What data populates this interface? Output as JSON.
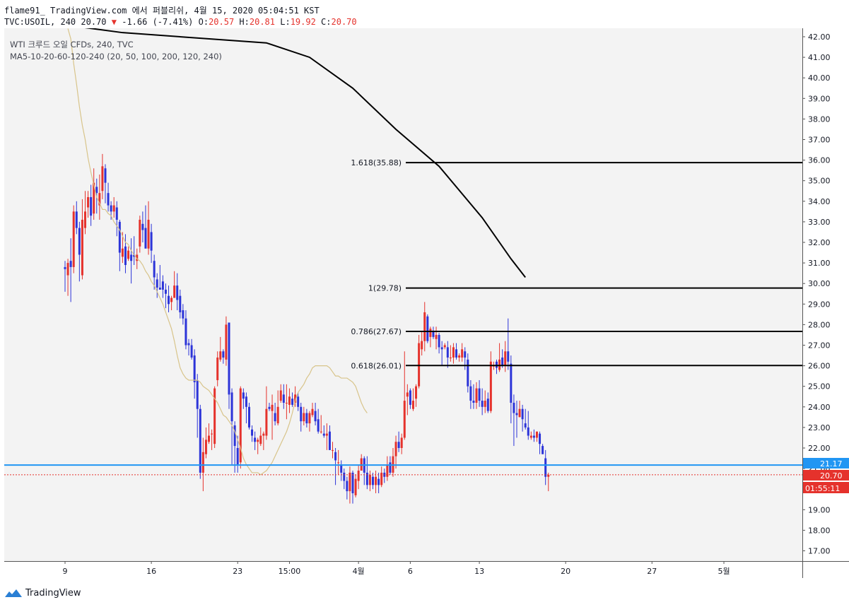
{
  "header": {
    "line1": "flame91_ TradingView.com 에서 퍼블리쉬, 4월 15, 2020 05:04:51 KST",
    "symbol": "TVC:USOIL, 240",
    "last": "20.70",
    "arrow": "▼",
    "change": "-1.66 (-7.41%)",
    "o_label": "O:",
    "o": "20.57",
    "h_label": "H:",
    "h": "20.81",
    "l_label": "L:",
    "l": "19.92",
    "c_label": "C:",
    "c": "20.70"
  },
  "legend": {
    "title": "WTI 크루드 오일 CFDs, 240, TVC",
    "ma": "MA5-10-20-60-120-240 (20, 50, 100, 200, 120, 240)"
  },
  "badges": {
    "level": "21.17",
    "price": "20.70",
    "timer": "01:55:11"
  },
  "footer": {
    "brand": "TradingView"
  },
  "colors": {
    "up": "#e5322c",
    "down": "#2c34d8",
    "ma_tan": "#d8c48a",
    "ma_blue": "#2f3ae0",
    "ma_red": "#e8322a",
    "trend": "#000000",
    "hline": "#2196f3",
    "bg": "#f3f3f3"
  },
  "chart_data": {
    "type": "candlestick",
    "title": "WTI 크루드 오일 CFDs, 240, TVC",
    "symbol": "TVC:USOIL",
    "ylim": [
      16.3,
      42.3
    ],
    "y_ticks": [
      "42.00",
      "41.00",
      "40.00",
      "39.00",
      "38.00",
      "37.00",
      "36.00",
      "35.00",
      "34.00",
      "33.00",
      "32.00",
      "31.00",
      "30.00",
      "29.00",
      "28.00",
      "27.00",
      "26.00",
      "25.00",
      "24.00",
      "23.00",
      "22.00",
      "21.00",
      "20.00",
      "19.00",
      "18.00",
      "17.00"
    ],
    "x_ticks": [
      {
        "label": "9",
        "bar": 0
      },
      {
        "label": "16",
        "bar": 30
      },
      {
        "label": "23",
        "bar": 60
      },
      {
        "label": "15:00",
        "bar": 78
      },
      {
        "label": "4월",
        "bar": 102
      },
      {
        "label": "6",
        "bar": 120
      },
      {
        "label": "13",
        "bar": 144
      },
      {
        "label": "20",
        "bar": 174
      },
      {
        "label": "27",
        "bar": 204
      },
      {
        "label": "5월",
        "bar": 229
      }
    ],
    "fib_levels": [
      {
        "label": "1.618(35.88)",
        "value": 35.88
      },
      {
        "label": "1(29.78)",
        "value": 29.78
      },
      {
        "label": "0.786(27.67)",
        "value": 27.67
      },
      {
        "label": "0.618(26.01)",
        "value": 26.01
      }
    ],
    "horizontal_line": 21.17,
    "last_price": 20.7,
    "trendline": [
      [
        -1,
        42.6
      ],
      [
        4,
        42.5
      ],
      [
        20,
        42.2
      ],
      [
        70,
        41.7
      ],
      [
        85,
        41.0
      ],
      [
        100,
        39.5
      ],
      [
        115,
        37.5
      ],
      [
        130,
        35.7
      ],
      [
        145,
        33.2
      ],
      [
        155,
        31.2
      ],
      [
        160,
        30.3
      ]
    ],
    "candles": [
      [
        30.8,
        30.7,
        31.1,
        29.6
      ],
      [
        30.4,
        31.0,
        31.2,
        29.4
      ],
      [
        31.1,
        30.8,
        32.2,
        29.1
      ],
      [
        30.8,
        33.5,
        33.8,
        30.5
      ],
      [
        33.5,
        32.7,
        34.0,
        32.4
      ],
      [
        32.7,
        31.4,
        33.0,
        30.1
      ],
      [
        30.4,
        33.1,
        34.1,
        30.2
      ],
      [
        32.7,
        33.5,
        34.5,
        32.4
      ],
      [
        33.7,
        34.2,
        34.5,
        33.2
      ],
      [
        34.2,
        33.3,
        34.8,
        32.8
      ],
      [
        33.4,
        34.9,
        35.6,
        33.1
      ],
      [
        34.7,
        34.4,
        35.1,
        33.4
      ],
      [
        33.8,
        34.4,
        35.3,
        33.1
      ],
      [
        34.5,
        35.7,
        36.3,
        34.1
      ],
      [
        35.6,
        34.9,
        35.8,
        33.9
      ],
      [
        34.4,
        33.8,
        34.9,
        33.5
      ],
      [
        33.8,
        33.5,
        34.0,
        33.1
      ],
      [
        33.5,
        33.8,
        34.2,
        33.2
      ],
      [
        33.7,
        33.1,
        34.0,
        32.3
      ],
      [
        33.0,
        31.5,
        33.1,
        30.6
      ],
      [
        31.3,
        31.7,
        32.5,
        31.0
      ],
      [
        31.8,
        30.9,
        32.4,
        30.5
      ],
      [
        31.2,
        31.6,
        31.8,
        31.1
      ],
      [
        31.4,
        31.1,
        32.2,
        30.0
      ],
      [
        31.4,
        31.3,
        32.3,
        30.9
      ],
      [
        31.1,
        31.4,
        31.7,
        30.7
      ],
      [
        31.8,
        33.1,
        33.3,
        31.5
      ],
      [
        32.9,
        32.6,
        33.5,
        32.0
      ],
      [
        32.7,
        31.7,
        33.8,
        31.7
      ],
      [
        31.7,
        33.1,
        34.0,
        31.4
      ],
      [
        32.5,
        31.6,
        32.9,
        31.0
      ],
      [
        31.1,
        30.3,
        31.4,
        29.7
      ],
      [
        30.2,
        29.8,
        30.5,
        29.3
      ],
      [
        29.8,
        29.7,
        30.9,
        29.7
      ],
      [
        30.1,
        29.7,
        30.4,
        29.3
      ],
      [
        29.7,
        29.5,
        30.0,
        28.8
      ],
      [
        29.4,
        29.0,
        29.9,
        28.6
      ],
      [
        29.1,
        29.3,
        29.4,
        28.7
      ],
      [
        29.3,
        29.9,
        30.6,
        29.3
      ],
      [
        29.9,
        29.2,
        30.5,
        28.7
      ],
      [
        29.4,
        28.6,
        29.7,
        28.3
      ],
      [
        28.7,
        28.3,
        29.0,
        28.0
      ],
      [
        28.3,
        27.0,
        28.7,
        26.8
      ],
      [
        27.1,
        27.0,
        27.3,
        26.5
      ],
      [
        27.0,
        26.4,
        27.3,
        26.3
      ],
      [
        26.5,
        25.2,
        26.8,
        24.4
      ],
      [
        25.3,
        23.9,
        25.6,
        22.5
      ],
      [
        23.9,
        20.8,
        24.1,
        20.5
      ],
      [
        20.8,
        21.8,
        22.5,
        19.9
      ],
      [
        21.7,
        22.4,
        23.0,
        21.5
      ],
      [
        22.3,
        22.6,
        23.2,
        22.2
      ],
      [
        22.7,
        22.7,
        22.9,
        21.9
      ],
      [
        22.2,
        24.9,
        25.0,
        22.0
      ],
      [
        25.3,
        26.4,
        26.7,
        25.0
      ],
      [
        26.3,
        26.7,
        27.4,
        26.2
      ],
      [
        26.7,
        26.4,
        26.8,
        26.1
      ],
      [
        26.3,
        28.0,
        28.4,
        26.0
      ],
      [
        28.1,
        24.6,
        28.1,
        23.9
      ],
      [
        24.7,
        23.3,
        24.9,
        21.2
      ],
      [
        23.1,
        22.1,
        23.3,
        20.8
      ],
      [
        22.0,
        21.2,
        22.6,
        20.8
      ],
      [
        21.3,
        24.9,
        25.0,
        21.0
      ],
      [
        24.7,
        24.4,
        24.9,
        23.9
      ],
      [
        24.5,
        24.0,
        24.7,
        23.2
      ],
      [
        24.0,
        23.0,
        24.2,
        22.9
      ],
      [
        22.9,
        22.6,
        23.1,
        22.3
      ],
      [
        22.5,
        22.3,
        22.8,
        21.9
      ],
      [
        22.3,
        22.4,
        22.5,
        21.7
      ],
      [
        22.2,
        22.6,
        23.0,
        22.1
      ],
      [
        22.6,
        22.7,
        22.8,
        21.9
      ],
      [
        22.6,
        23.9,
        25.0,
        22.4
      ],
      [
        24.0,
        23.9,
        24.2,
        23.8
      ],
      [
        23.8,
        24.1,
        24.6,
        22.4
      ],
      [
        23.7,
        23.3,
        24.2,
        23.1
      ],
      [
        23.2,
        24.0,
        24.8,
        23.1
      ],
      [
        24.3,
        24.8,
        25.1,
        24.2
      ],
      [
        24.6,
        24.2,
        25.1,
        23.9
      ],
      [
        24.2,
        24.2,
        25.1,
        23.4
      ],
      [
        24.1,
        24.5,
        24.9,
        23.7
      ],
      [
        24.4,
        24.1,
        24.7,
        24.0
      ],
      [
        24.2,
        24.6,
        25.0,
        24.0
      ],
      [
        24.5,
        24.0,
        24.7,
        23.8
      ],
      [
        24.0,
        23.3,
        24.2,
        22.8
      ],
      [
        23.3,
        23.7,
        24.0,
        23.1
      ],
      [
        23.7,
        23.2,
        23.9,
        23.0
      ],
      [
        23.2,
        23.7,
        23.8,
        22.8
      ],
      [
        23.6,
        23.9,
        24.2,
        23.5
      ],
      [
        23.8,
        23.3,
        24.2,
        23.1
      ],
      [
        23.4,
        22.8,
        23.9,
        22.7
      ],
      [
        22.8,
        22.8,
        23.6,
        22.7
      ],
      [
        22.7,
        22.6,
        23.1,
        22.5
      ],
      [
        22.6,
        22.7,
        23.2,
        21.9
      ],
      [
        22.8,
        21.9,
        23.1,
        21.9
      ],
      [
        21.9,
        21.9,
        22.3,
        21.5
      ],
      [
        21.8,
        21.4,
        22.0,
        20.2
      ],
      [
        21.3,
        21.3,
        21.9,
        20.7
      ],
      [
        21.2,
        20.8,
        21.4,
        20.4
      ],
      [
        20.8,
        20.4,
        21.0,
        20.0
      ],
      [
        20.4,
        19.9,
        20.6,
        19.5
      ],
      [
        19.9,
        20.8,
        21.1,
        19.3
      ],
      [
        20.8,
        19.8,
        20.9,
        19.3
      ],
      [
        19.7,
        20.5,
        20.7,
        19.6
      ],
      [
        20.4,
        20.9,
        21.2,
        20.0
      ],
      [
        20.9,
        21.5,
        21.7,
        20.9
      ],
      [
        21.5,
        20.8,
        21.6,
        20.2
      ],
      [
        20.8,
        20.2,
        21.6,
        20.0
      ],
      [
        20.2,
        20.7,
        20.9,
        19.9
      ],
      [
        20.6,
        20.2,
        20.8,
        20.0
      ],
      [
        20.2,
        20.6,
        20.9,
        19.8
      ],
      [
        20.5,
        20.2,
        20.8,
        19.8
      ],
      [
        20.2,
        20.8,
        21.1,
        20.1
      ],
      [
        20.8,
        20.6,
        21.0,
        20.3
      ],
      [
        20.6,
        21.2,
        21.6,
        20.4
      ],
      [
        21.3,
        20.8,
        21.6,
        20.7
      ],
      [
        20.8,
        21.6,
        22.0,
        20.6
      ],
      [
        21.6,
        22.3,
        22.6,
        21.0
      ],
      [
        22.3,
        22.0,
        22.8,
        21.8
      ],
      [
        22.0,
        22.5,
        22.7,
        21.7
      ],
      [
        22.5,
        24.3,
        26.7,
        22.4
      ],
      [
        24.5,
        24.7,
        25.1,
        23.6
      ],
      [
        24.8,
        24.1,
        24.9,
        23.9
      ],
      [
        23.9,
        24.3,
        24.9,
        23.8
      ],
      [
        24.4,
        25.0,
        25.1,
        24.0
      ],
      [
        25.0,
        27.1,
        27.5,
        24.9
      ],
      [
        26.8,
        27.2,
        27.7,
        26.5
      ],
      [
        27.2,
        28.6,
        29.1,
        26.7
      ],
      [
        28.4,
        27.2,
        28.5,
        27.1
      ],
      [
        27.4,
        27.8,
        27.9,
        26.9
      ],
      [
        27.7,
        27.4,
        27.9,
        27.3
      ],
      [
        27.3,
        27.5,
        27.9,
        26.8
      ],
      [
        27.5,
        26.9,
        27.6,
        26.6
      ],
      [
        26.9,
        26.8,
        27.2,
        26.0
      ],
      [
        26.9,
        27.0,
        27.1,
        26.8
      ],
      [
        26.9,
        26.4,
        27.2,
        25.9
      ],
      [
        26.4,
        26.4,
        27.0,
        26.2
      ],
      [
        26.4,
        26.9,
        27.1,
        26.1
      ],
      [
        26.8,
        26.4,
        27.1,
        26.3
      ],
      [
        26.4,
        26.5,
        26.6,
        26.2
      ],
      [
        26.4,
        26.8,
        27.1,
        26.2
      ],
      [
        26.7,
        26.4,
        26.9,
        25.8
      ],
      [
        26.3,
        25.0,
        26.6,
        24.7
      ],
      [
        25.0,
        24.3,
        25.3,
        23.9
      ],
      [
        24.3,
        24.2,
        25.1,
        23.9
      ],
      [
        24.2,
        24.9,
        25.2,
        23.9
      ],
      [
        24.9,
        24.3,
        25.3,
        24.0
      ],
      [
        24.3,
        24.0,
        24.9,
        23.6
      ],
      [
        24.0,
        24.3,
        24.8,
        23.7
      ],
      [
        24.4,
        23.8,
        24.7,
        23.7
      ],
      [
        23.8,
        26.2,
        26.7,
        23.7
      ],
      [
        26.0,
        26.0,
        26.2,
        25.8
      ],
      [
        26.2,
        25.9,
        26.3,
        25.6
      ],
      [
        25.8,
        26.3,
        27.1,
        25.7
      ],
      [
        26.4,
        26.0,
        26.8,
        25.9
      ],
      [
        26.0,
        26.7,
        27.2,
        25.7
      ],
      [
        26.7,
        26.2,
        28.3,
        25.8
      ],
      [
        26.1,
        24.2,
        26.5,
        23.2
      ],
      [
        24.2,
        23.7,
        24.6,
        22.1
      ],
      [
        23.7,
        23.6,
        24.3,
        22.5
      ],
      [
        23.5,
        23.9,
        24.3,
        23.5
      ],
      [
        23.9,
        23.4,
        24.1,
        22.8
      ],
      [
        23.2,
        23.0,
        23.9,
        22.9
      ],
      [
        23.0,
        22.6,
        23.8,
        22.4
      ],
      [
        22.5,
        22.6,
        22.8,
        22.4
      ],
      [
        22.6,
        22.5,
        22.9,
        22.3
      ],
      [
        22.5,
        22.8,
        22.8,
        22.3
      ],
      [
        22.7,
        22.2,
        22.8,
        21.7
      ],
      [
        22.1,
        21.7,
        22.2,
        21.7
      ],
      [
        21.5,
        20.6,
        21.9,
        20.2
      ],
      [
        20.6,
        20.7,
        20.8,
        19.9
      ]
    ],
    "moving_averages": [
      {
        "color": "#d8c48a",
        "from_bar": 1,
        "values": [
          42.4,
          41.9,
          40.7,
          39.7,
          38.6,
          37.7,
          37.0,
          36.1,
          35.4,
          34.8,
          34.2,
          33.9,
          33.6,
          33.6,
          33.4,
          33.3,
          33.0,
          32.8,
          32.6,
          32.3,
          32.0,
          31.9,
          31.6,
          31.4,
          31.2,
          31.1,
          30.9,
          30.6,
          30.4,
          30.1,
          29.9,
          29.6,
          29.3,
          29.0,
          28.6,
          28.2,
          27.8,
          27.2,
          26.5,
          25.9,
          25.6,
          25.4,
          25.3,
          25.3,
          25.3,
          25.3,
          25.2,
          25.0,
          24.9,
          24.8,
          24.6,
          24.4,
          24.2,
          23.9,
          23.6,
          23.5,
          23.3,
          23.1,
          22.8,
          22.4,
          22.0,
          21.5,
          21.2,
          21.0,
          20.8,
          20.8,
          20.8,
          20.7,
          20.8,
          20.9,
          21.1,
          21.3,
          21.6,
          21.9,
          22.2,
          22.5,
          22.8,
          23.2,
          23.7,
          24.3,
          24.7,
          24.9,
          25.1,
          25.4,
          25.6,
          25.9,
          26.0,
          26.0,
          26.0,
          26.0,
          26.0,
          25.9,
          25.7,
          25.5,
          25.5,
          25.4,
          25.4,
          25.4,
          25.3,
          25.2,
          25.0,
          24.6,
          24.2,
          23.9,
          23.7
        ]
      }
    ]
  }
}
